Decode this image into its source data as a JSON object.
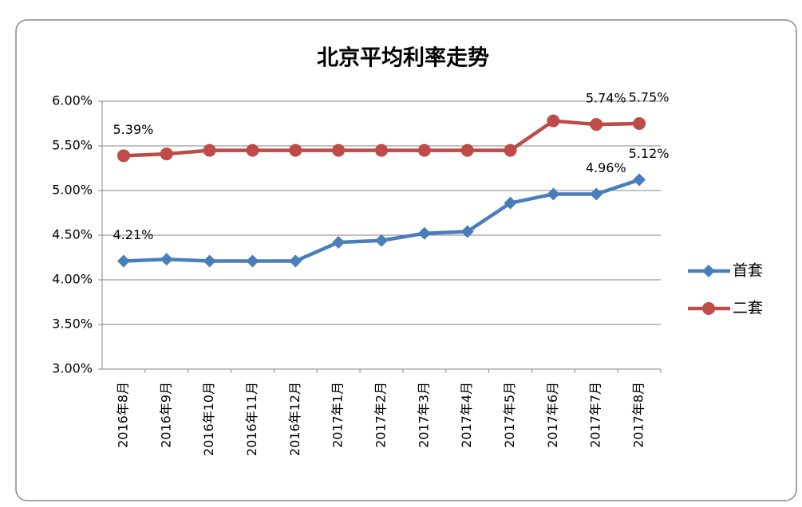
{
  "chart_data": {
    "type": "line",
    "title": "北京平均利率走势",
    "categories": [
      "2016年8月",
      "2016年9月",
      "2016年10月",
      "2016年11月",
      "2016年12月",
      "2017年1月",
      "2017年2月",
      "2017年3月",
      "2017年4月",
      "2017年5月",
      "2017年6月",
      "2017年7月",
      "2017年8月"
    ],
    "series": [
      {
        "name": "首套",
        "color": "#4a7ebb",
        "marker": "diamond",
        "values": [
          4.21,
          4.23,
          4.21,
          4.21,
          4.21,
          4.42,
          4.44,
          4.52,
          4.54,
          4.86,
          4.96,
          4.96,
          5.12
        ],
        "value_labels": [
          "4.21%",
          null,
          null,
          null,
          null,
          null,
          null,
          null,
          null,
          null,
          null,
          "4.96%",
          "5.12%"
        ]
      },
      {
        "name": "二套",
        "color": "#be4b48",
        "marker": "circle",
        "values": [
          5.39,
          5.41,
          5.45,
          5.45,
          5.45,
          5.45,
          5.45,
          5.45,
          5.45,
          5.45,
          5.78,
          5.74,
          5.75
        ],
        "value_labels": [
          "5.39%",
          null,
          null,
          null,
          null,
          null,
          null,
          null,
          null,
          null,
          null,
          "5.74%",
          "5.75%"
        ]
      }
    ],
    "ylim": [
      3,
      6
    ],
    "yticks": [
      {
        "value": 3,
        "label": "3.00%"
      },
      {
        "value": 3.5,
        "label": "3.50%"
      },
      {
        "value": 4,
        "label": "4.00%"
      },
      {
        "value": 4.5,
        "label": "4.50%"
      },
      {
        "value": 5,
        "label": "5.00%"
      },
      {
        "value": 5.5,
        "label": "5.50%"
      },
      {
        "value": 6,
        "label": "6.00%"
      }
    ],
    "grid": true,
    "legend": "right"
  }
}
